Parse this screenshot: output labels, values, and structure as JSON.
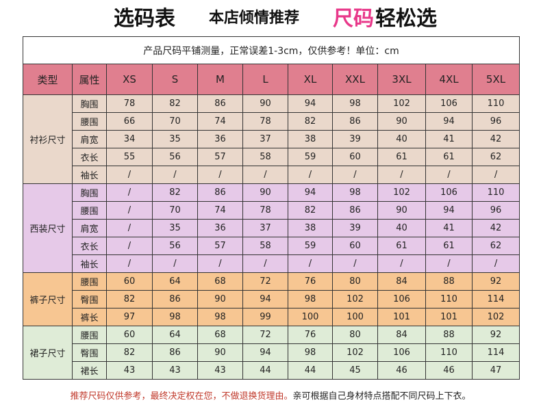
{
  "header": {
    "part1": "选码表",
    "part2": "本店倾情推荐",
    "part3": "尺码",
    "part4": "轻松选"
  },
  "table": {
    "note": "产品尺码平铺测量，正常误差1-3cm，仅供参考！单位：cm",
    "headers": [
      "类型",
      "属性",
      "XS",
      "S",
      "M",
      "L",
      "XL",
      "XXL",
      "3XL",
      "4XL",
      "5XL"
    ],
    "groups": [
      {
        "name": "衬衫尺寸",
        "color": "#ead8cb",
        "rows": [
          {
            "attr": "胸围",
            "values": [
              "78",
              "82",
              "86",
              "90",
              "94",
              "98",
              "102",
              "106",
              "110"
            ]
          },
          {
            "attr": "腰围",
            "values": [
              "66",
              "70",
              "74",
              "78",
              "82",
              "86",
              "90",
              "94",
              "96"
            ]
          },
          {
            "attr": "肩宽",
            "values": [
              "34",
              "35",
              "36",
              "37",
              "38",
              "39",
              "40",
              "41",
              "42"
            ]
          },
          {
            "attr": "衣长",
            "values": [
              "55",
              "56",
              "57",
              "58",
              "59",
              "60",
              "61",
              "61",
              "62"
            ]
          },
          {
            "attr": "袖长",
            "values": [
              "/",
              "/",
              "/",
              "/",
              "/",
              "/",
              "/",
              "/",
              "/"
            ]
          }
        ]
      },
      {
        "name": "西装尺寸",
        "color": "#e6c9e8",
        "rows": [
          {
            "attr": "胸围",
            "values": [
              "/",
              "82",
              "86",
              "90",
              "94",
              "98",
              "102",
              "106",
              "110"
            ]
          },
          {
            "attr": "腰围",
            "values": [
              "/",
              "70",
              "74",
              "78",
              "82",
              "86",
              "90",
              "94",
              "96"
            ]
          },
          {
            "attr": "肩宽",
            "values": [
              "/",
              "35",
              "36",
              "37",
              "38",
              "39",
              "40",
              "41",
              "42"
            ]
          },
          {
            "attr": "衣长",
            "values": [
              "/",
              "56",
              "57",
              "58",
              "59",
              "60",
              "61",
              "61",
              "62"
            ]
          },
          {
            "attr": "袖长",
            "values": [
              "/",
              "/",
              "/",
              "/",
              "/",
              "/",
              "/",
              "/",
              "/"
            ]
          }
        ]
      },
      {
        "name": "裤子尺寸",
        "color": "#f7c692",
        "rows": [
          {
            "attr": "腰围",
            "values": [
              "60",
              "64",
              "68",
              "72",
              "76",
              "80",
              "84",
              "88",
              "92"
            ]
          },
          {
            "attr": "臀围",
            "values": [
              "82",
              "86",
              "90",
              "94",
              "98",
              "102",
              "106",
              "110",
              "114"
            ]
          },
          {
            "attr": "裤长",
            "values": [
              "97",
              "98",
              "98",
              "99",
              "100",
              "100",
              "101",
              "101",
              "102"
            ]
          }
        ]
      },
      {
        "name": "裙子尺寸",
        "color": "#dfecd7",
        "rows": [
          {
            "attr": "腰围",
            "values": [
              "60",
              "64",
              "68",
              "72",
              "76",
              "80",
              "84",
              "88",
              "92"
            ]
          },
          {
            "attr": "臀围",
            "values": [
              "82",
              "86",
              "90",
              "94",
              "98",
              "102",
              "106",
              "110",
              "114"
            ]
          },
          {
            "attr": "裙长",
            "values": [
              "43",
              "43",
              "43",
              "44",
              "44",
              "45",
              "46",
              "46",
              "47"
            ]
          }
        ]
      }
    ]
  },
  "footer": {
    "red_text": "推荐尺码仅供参考，最终决定权在您，不做退换货理由。",
    "black_text": "亲可根据自己身材特点搭配不同尺码上下衣。"
  }
}
